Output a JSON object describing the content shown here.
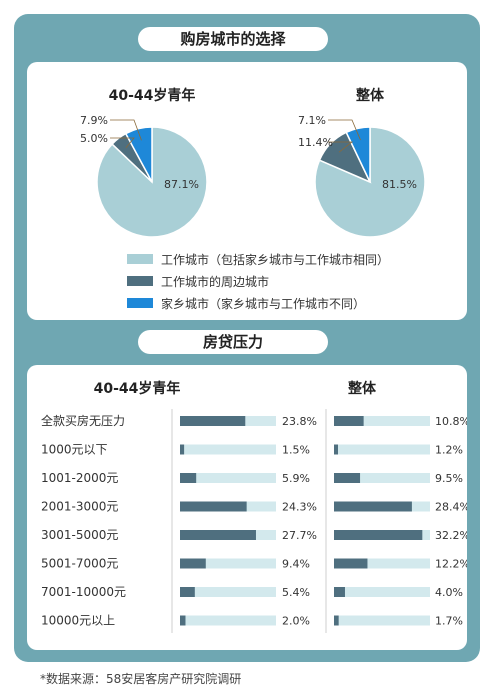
{
  "titles": {
    "city": "购房城市的选择",
    "loan": "房贷压力"
  },
  "colors": {
    "light": "#a9cfd6",
    "dark": "#4f6f7f",
    "blue": "#1e88d8",
    "bar_track": "#d3e9ed",
    "frame": "#6fa7b2"
  },
  "chart_data": [
    {
      "type": "pie",
      "title": "40-44岁青年",
      "slices": [
        {
          "label": "工作城市（包括家乡城市与工作城市相同）",
          "value": 87.1,
          "display": "87.1%"
        },
        {
          "label": "工作城市的周边城市",
          "value": 5.0,
          "display": "5.0%"
        },
        {
          "label": "家乡城市（家乡城市与工作城市不同）",
          "value": 7.9,
          "display": "7.9%"
        }
      ]
    },
    {
      "type": "pie",
      "title": "整体",
      "slices": [
        {
          "label": "工作城市（包括家乡城市与工作城市相同）",
          "value": 81.5,
          "display": "81.5%"
        },
        {
          "label": "工作城市的周边城市",
          "value": 11.4,
          "display": "11.4%"
        },
        {
          "label": "家乡城市（家乡城市与工作城市不同）",
          "value": 7.1,
          "display": "7.1%"
        }
      ]
    },
    {
      "type": "bar",
      "categories": [
        "全款买房无压力",
        "1000元以下",
        "1001-2000元",
        "2001-3000元",
        "3001-5000元",
        "5001-7000元",
        "7001-10000元",
        "10000元以上"
      ],
      "xlim": [
        0,
        35
      ],
      "series": [
        {
          "name": "40-44岁青年",
          "values": [
            23.8,
            1.5,
            5.9,
            24.3,
            27.7,
            9.4,
            5.4,
            2.0
          ],
          "display": [
            "23.8%",
            "1.5%",
            "5.9%",
            "24.3%",
            "27.7%",
            "9.4%",
            "5.4%",
            "2.0%"
          ]
        },
        {
          "name": "整体",
          "values": [
            10.8,
            1.2,
            9.5,
            28.4,
            32.2,
            12.2,
            4.0,
            1.7
          ],
          "display": [
            "10.8%",
            "1.2%",
            "9.5%",
            "28.4%",
            "32.2%",
            "12.2%",
            "4.0%",
            "1.7%"
          ]
        }
      ]
    }
  ],
  "legend": [
    {
      "label": "工作城市（包括家乡城市与工作城市相同）",
      "color": "#a9cfd6"
    },
    {
      "label": "工作城市的周边城市",
      "color": "#4f6f7f"
    },
    {
      "label": "家乡城市（家乡城市与工作城市不同）",
      "color": "#1e88d8"
    }
  ],
  "footnote": "*数据来源：58安居客房产研究院调研"
}
